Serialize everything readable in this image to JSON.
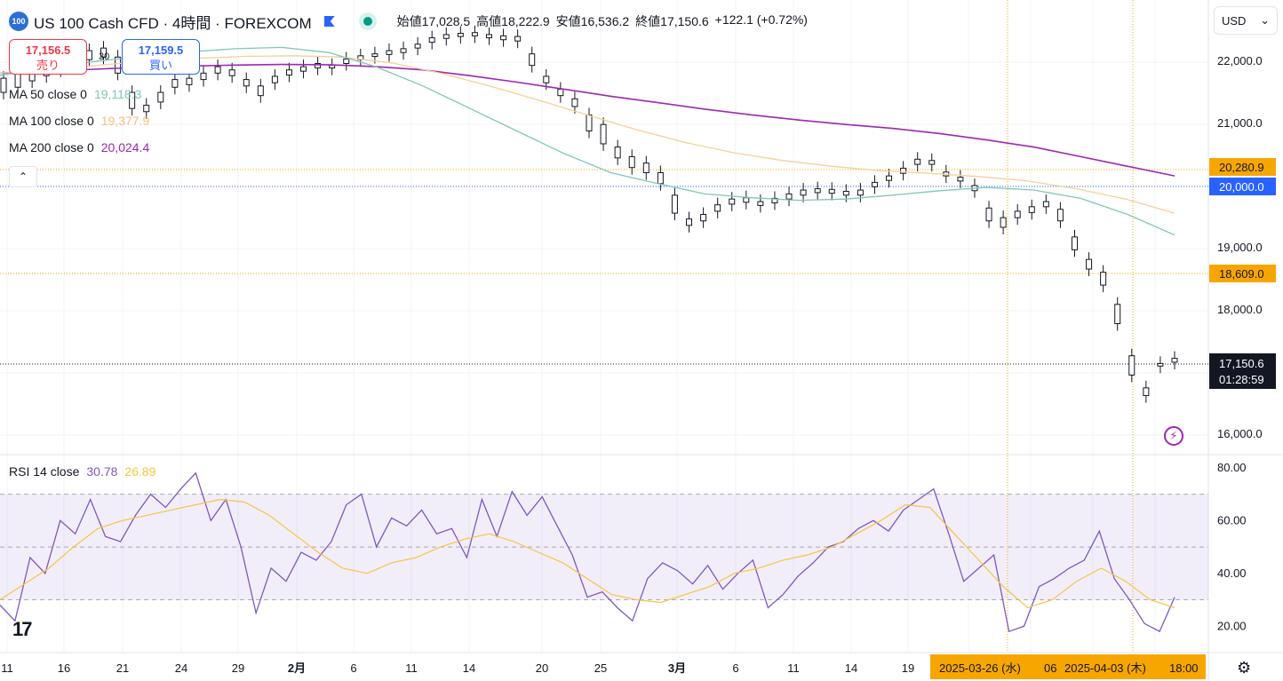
{
  "header": {
    "logo_text": "100",
    "symbol": "US 100 Cash CFD · 4時間 · FOREXCOM",
    "open_label": "始値",
    "open": "17,028.5",
    "high_label": "高値",
    "high": "18,222.9",
    "low_label": "安値",
    "low": "16,536.2",
    "close_label": "終値",
    "close": "17,150.6",
    "change": "+122.1 (+0.72%)"
  },
  "trade": {
    "sell_price": "17,156.5",
    "sell_label": "売り",
    "spread": "30",
    "buy_price": "17,159.5",
    "buy_label": "買い"
  },
  "indicators": {
    "ma50": {
      "label": "MA 50 close 0",
      "value": "19,118.3",
      "color": "#7fc6b8"
    },
    "ma100": {
      "label": "MA 100 close 0",
      "value": "19,377.9",
      "color": "#f5d09a"
    },
    "ma200": {
      "label": "MA 200 close 0",
      "value": "20,024.4",
      "color": "#9c27b0"
    },
    "rsi": {
      "label": "RSI 14 close",
      "value": "30.78",
      "ma_value": "26.89",
      "color": "#7e57c2",
      "ma_color": "#f5c542"
    }
  },
  "currency": "USD",
  "currency_caret": "⌄",
  "collapse_icon": "⌃",
  "tv_logo": "17",
  "settings_icon": "⚙",
  "alert_icon": "⚡",
  "price_axis": {
    "ticks": [
      "22,000.0",
      "21,000.0",
      "19,000.0",
      "18,000.0",
      "16,000.0"
    ],
    "tag_high": "20,280.9",
    "tag_20000": "20,000.0",
    "tag_low": "18,609.0",
    "current_price": "17,150.6",
    "countdown": "01:28:59"
  },
  "rsi_axis": {
    "ticks": [
      "80.00",
      "60.00",
      "40.00",
      "20.00"
    ]
  },
  "time_axis": {
    "ticks": [
      "11",
      "16",
      "21",
      "24",
      "29",
      "2月",
      "6",
      "11",
      "14",
      "20",
      "25",
      "3月",
      "6",
      "11",
      "14",
      "19"
    ],
    "hover1": "2025-03-26 (水)",
    "hover_partial": "06",
    "hover2": "2025-04-03 (木)",
    "hover_time": "18:00"
  },
  "chart_data": {
    "type": "candlestick",
    "title": "US 100 Cash CFD · 4時間 · FOREXCOM",
    "ylim": [
      15800,
      22600
    ],
    "rsi_ylim": [
      10,
      85
    ],
    "rsi_band": [
      30,
      70
    ],
    "price_series": [
      [
        21520,
        21300
      ],
      [
        21600,
        21380
      ],
      [
        21700,
        21480
      ],
      [
        21750,
        21560
      ],
      [
        21800,
        21650
      ],
      [
        21900,
        21750
      ],
      [
        21950,
        21810
      ],
      [
        21990,
        21850
      ],
      [
        21850,
        21600
      ],
      [
        21300,
        21050
      ],
      [
        21100,
        21000
      ],
      [
        21300,
        21150
      ],
      [
        21500,
        21380
      ],
      [
        21520,
        21420
      ],
      [
        21600,
        21500
      ],
      [
        21700,
        21600
      ],
      [
        21650,
        21560
      ],
      [
        21500,
        21400
      ],
      [
        21400,
        21250
      ],
      [
        21550,
        21450
      ],
      [
        21650,
        21570
      ],
      [
        21700,
        21630
      ],
      [
        21750,
        21680
      ],
      [
        21720,
        21680
      ],
      [
        21820,
        21750
      ],
      [
        21870,
        21810
      ],
      [
        21900,
        21860
      ],
      [
        21950,
        21890
      ],
      [
        21980,
        21920
      ],
      [
        22050,
        21990
      ],
      [
        22150,
        22080
      ],
      [
        22200,
        22140
      ],
      [
        22220,
        22170
      ],
      [
        22230,
        22180
      ],
      [
        22200,
        22150
      ],
      [
        22180,
        22120
      ],
      [
        22170,
        22100
      ],
      [
        21900,
        21720
      ],
      [
        21550,
        21450
      ],
      [
        21350,
        21250
      ],
      [
        21200,
        21080
      ],
      [
        20950,
        20700
      ],
      [
        20800,
        20500
      ],
      [
        20450,
        20280
      ],
      [
        20300,
        20130
      ],
      [
        20200,
        20050
      ],
      [
        20050,
        19880
      ],
      [
        19700,
        19420
      ],
      [
        19330,
        19230
      ],
      [
        19400,
        19300
      ],
      [
        19550,
        19450
      ],
      [
        19640,
        19560
      ],
      [
        19660,
        19590
      ],
      [
        19600,
        19540
      ],
      [
        19650,
        19580
      ],
      [
        19720,
        19640
      ],
      [
        19780,
        19700
      ],
      [
        19800,
        19740
      ],
      [
        19790,
        19730
      ],
      [
        19760,
        19700
      ],
      [
        19780,
        19700
      ],
      [
        19900,
        19830
      ],
      [
        20000,
        19930
      ],
      [
        20120,
        20040
      ],
      [
        20260,
        20180
      ],
      [
        20240,
        20180
      ],
      [
        20060,
        20000
      ],
      [
        19980,
        19920
      ],
      [
        19850,
        19770
      ],
      [
        19500,
        19300
      ],
      [
        19350,
        19200
      ],
      [
        19450,
        19350
      ],
      [
        19520,
        19430
      ],
      [
        19600,
        19520
      ],
      [
        19480,
        19300
      ],
      [
        19050,
        18850
      ],
      [
        18700,
        18550
      ],
      [
        18500,
        18300
      ],
      [
        18000,
        17700
      ],
      [
        17200,
        16900
      ],
      [
        16700,
        16580
      ],
      [
        17080,
        17040
      ],
      [
        17160,
        17100
      ]
    ],
    "ma50": [
      21560,
      21700,
      21780,
      21860,
      21930,
      21980,
      22000,
      21920,
      21700,
      21400,
      21050,
      20700,
      20350,
      20050,
      19880,
      19720,
      19660,
      19620,
      19640,
      19700,
      19770,
      19820,
      19780,
      19650,
      19400,
      19080
    ],
    "ma100": [
      21600,
      21660,
      21720,
      21790,
      21830,
      21860,
      21870,
      21850,
      21760,
      21600,
      21400,
      21180,
      20950,
      20720,
      20520,
      20360,
      20240,
      20150,
      20080,
      20040,
      19990,
      19920,
      19800,
      19640,
      19420
    ],
    "ma200": [
      21600,
      21630,
      21660,
      21690,
      21710,
      21725,
      21735,
      21730,
      21700,
      21650,
      21560,
      21460,
      21350,
      21240,
      21140,
      21040,
      20950,
      20870,
      20800,
      20740,
      20660,
      20560,
      20450,
      20300,
      20150,
      20000
    ],
    "rsi": [
      28,
      22,
      46,
      40,
      60,
      55,
      68,
      54,
      52,
      62,
      70,
      65,
      72,
      78,
      60,
      68,
      50,
      25,
      42,
      37,
      48,
      45,
      52,
      66,
      70,
      50,
      61,
      58,
      64,
      55,
      57,
      46,
      68,
      54,
      71,
      62,
      69,
      58,
      47,
      31,
      33,
      27,
      22,
      38,
      44,
      41,
      36,
      43,
      34,
      40,
      45,
      27,
      32,
      39,
      44,
      50,
      52,
      57,
      60,
      56,
      64,
      68,
      72,
      55,
      37,
      42,
      47,
      18,
      20,
      35,
      38,
      42,
      45,
      56,
      38,
      30,
      21,
      18,
      31
    ],
    "rsi_ma": [
      30,
      36,
      42,
      50,
      57,
      60,
      62,
      64,
      66,
      68,
      67,
      62,
      55,
      48,
      42,
      40,
      44,
      46,
      50,
      53,
      55,
      52,
      48,
      44,
      38,
      32,
      30,
      29,
      32,
      35,
      40,
      42,
      45,
      47,
      50,
      55,
      60,
      66,
      65,
      55,
      45,
      35,
      27,
      30,
      37,
      42,
      37,
      30,
      27
    ]
  }
}
